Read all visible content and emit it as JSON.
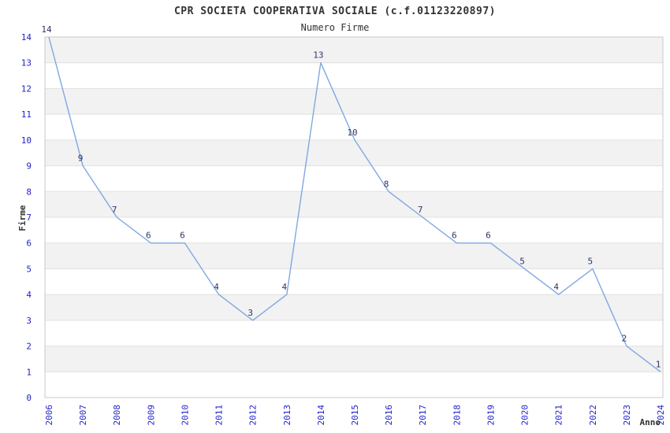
{
  "chart_data": {
    "type": "line",
    "title": "CPR SOCIETA COOPERATIVA SOCIALE (c.f.01123220897)",
    "subtitle": "Numero Firme",
    "xlabel": "Anno",
    "ylabel": "Firme",
    "x": [
      "2006",
      "2007",
      "2008",
      "2009",
      "2010",
      "2011",
      "2012",
      "2013",
      "2014",
      "2015",
      "2016",
      "2017",
      "2018",
      "2019",
      "2020",
      "2021",
      "2022",
      "2023",
      "2024"
    ],
    "values": [
      14,
      9,
      7,
      6,
      6,
      4,
      3,
      4,
      13,
      10,
      8,
      7,
      6,
      6,
      5,
      4,
      5,
      2,
      1
    ],
    "ylim": [
      0,
      14
    ],
    "ytick_step": 1,
    "grid": true,
    "legend": "none",
    "band_shading": "alternating horizontal bands shaded between odd and even gridlines",
    "point_labels": true,
    "colors": {
      "line": "#7FA8E0",
      "tick_label": "#2222CC",
      "point_label": "#333366",
      "band": "#F2F2F2",
      "grid": "#E0E0E0",
      "frame": "#C9C9C9",
      "text": "#333333"
    }
  }
}
